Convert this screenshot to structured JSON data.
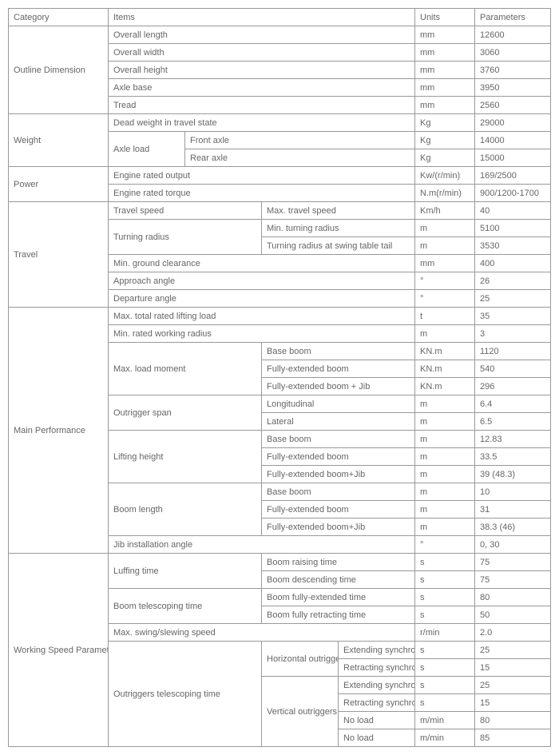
{
  "header": {
    "category": "Category",
    "items": "Items",
    "units": "Units",
    "parameters": "Parameters"
  },
  "outline": {
    "cat": "Outline Dimension",
    "r1": {
      "item": "Overall length",
      "unit": "mm",
      "param": "12600"
    },
    "r2": {
      "item": "Overall width",
      "unit": "mm",
      "param": "3060"
    },
    "r3": {
      "item": "Overall height",
      "unit": "mm",
      "param": "3760"
    },
    "r4": {
      "item": "Axle base",
      "unit": "mm",
      "param": "3950"
    },
    "r5": {
      "item": "Tread",
      "unit": "mm",
      "param": "2560"
    }
  },
  "weight": {
    "cat": "Weight",
    "r1": {
      "item": "Dead weight in travel state",
      "unit": "Kg",
      "param": "29000"
    },
    "axle": "Axle load",
    "r2": {
      "item": "Front axle",
      "unit": "Kg",
      "param": "14000"
    },
    "r3": {
      "item": "Rear axle",
      "unit": "Kg",
      "param": "15000"
    }
  },
  "power": {
    "cat": "Power",
    "r1": {
      "item": "Engine rated output",
      "unit": "Kw/(r/min)",
      "param": "169/2500"
    },
    "r2": {
      "item": "Engine rated torque",
      "unit": "N.m(r/min)",
      "param": "900/1200-1700"
    }
  },
  "travel": {
    "cat": "Travel",
    "speed": "Travel speed",
    "r1": {
      "item": "Max. travel speed",
      "unit": "Km/h",
      "param": "40"
    },
    "turning": "Turning radius",
    "r2": {
      "item": "Min. turning radius",
      "unit": "m",
      "param": "5100"
    },
    "r3": {
      "item": "Turning radius at swing table tail",
      "unit": "m",
      "param": "3530"
    },
    "r4": {
      "item": "Min. ground clearance",
      "unit": "mm",
      "param": "400"
    },
    "r5": {
      "item": "Approach angle",
      "unit": "°",
      "param": "26"
    },
    "r6": {
      "item": "Departure angle",
      "unit": "°",
      "param": "25"
    }
  },
  "main": {
    "cat": "Main Performance",
    "r1": {
      "item": "Max. total rated lifting load",
      "unit": "t",
      "param": "35"
    },
    "r2": {
      "item": "Min. rated working radius",
      "unit": "m",
      "param": "3"
    },
    "moment": "Max. load moment",
    "r3": {
      "item": "Base boom",
      "unit": "KN.m",
      "param": "1120"
    },
    "r4": {
      "item": "Fully-extended boom",
      "unit": "KN.m",
      "param": "540"
    },
    "r5": {
      "item": "Fully-extended boom + Jib",
      "unit": "KN.m",
      "param": "296"
    },
    "outrigger": "Outrigger span",
    "r6": {
      "item": "Longitudinal",
      "unit": "m",
      "param": "6.4"
    },
    "r7": {
      "item": "Lateral",
      "unit": "m",
      "param": "6.5"
    },
    "lifting": "Lifting height",
    "r8": {
      "item": "Base boom",
      "unit": "m",
      "param": "12.83"
    },
    "r9": {
      "item": "Fully-extended boom",
      "unit": "m",
      "param": "33.5"
    },
    "r10": {
      "item": "Fully-extended boom+Jib",
      "unit": "m",
      "param": "39 (48.3)"
    },
    "boom": "Boom length",
    "r11": {
      "item": "Base boom",
      "unit": "m",
      "param": "10"
    },
    "r12": {
      "item": "Fully-extended boom",
      "unit": "m",
      "param": "31"
    },
    "r13": {
      "item": "Fully-extended boom+Jib",
      "unit": "m",
      "param": "38.3 (46)"
    },
    "r14": {
      "item": "Jib installation angle",
      "unit": "°",
      "param": "0, 30"
    }
  },
  "working": {
    "cat": "Working Speed Parameters",
    "luff": "Luffing time",
    "r1": {
      "item": "Boom raising time",
      "unit": "s",
      "param": "75"
    },
    "r2": {
      "item": "Boom descending time",
      "unit": "s",
      "param": "75"
    },
    "tele": "Boom telescoping time",
    "r3": {
      "item": "Boom fully-extended time",
      "unit": "s",
      "param": "80"
    },
    "r4": {
      "item": "Boom fully retracting time",
      "unit": "s",
      "param": "50"
    },
    "r5": {
      "item": "Max. swing/slewing speed",
      "unit": "r/min",
      "param": "2.0"
    },
    "out": "Outriggers telescoping time",
    "horiz": "Horizontal outriggers",
    "vert": "Vertical outriggers",
    "r6": {
      "item": "Extending synchronously",
      "unit": "s",
      "param": "25"
    },
    "r7": {
      "item": "Retracting synchronously",
      "unit": "s",
      "param": "15"
    },
    "r8": {
      "item": "Extending synchronously",
      "unit": "s",
      "param": "25"
    },
    "r9": {
      "item": "Retracting synchronously",
      "unit": "s",
      "param": "15"
    },
    "r10": {
      "item": "No load",
      "unit": "m/min",
      "param": "80"
    },
    "r11": {
      "item": "No load",
      "unit": "m/min",
      "param": "85"
    }
  }
}
